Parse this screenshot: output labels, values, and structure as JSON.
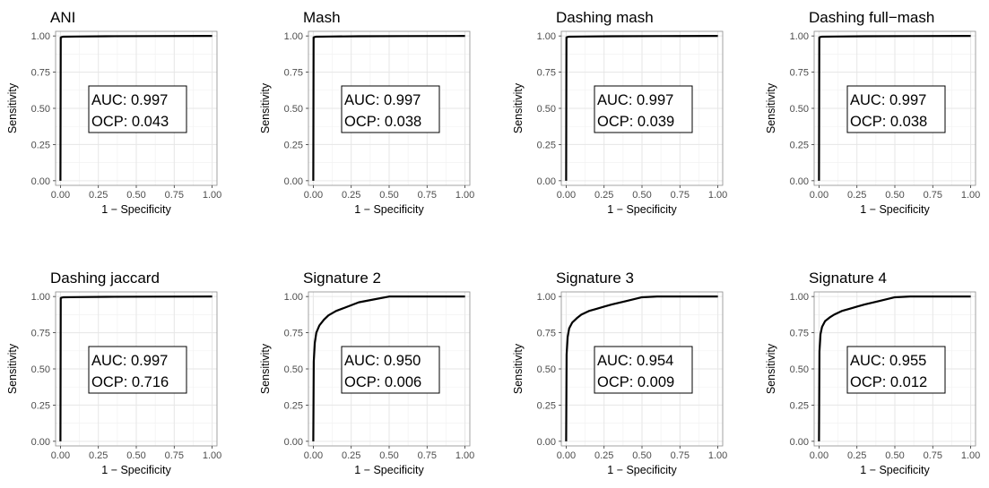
{
  "axes": {
    "xlabel": "1 − Specificity",
    "ylabel": "Sensitivity",
    "ticks": [
      "0.00",
      "0.25",
      "0.50",
      "0.75",
      "1.00"
    ]
  },
  "colors": {
    "curve": "#000000",
    "grid": "#e6e6e6",
    "panel": "#ffffff",
    "frame": "#8c8c8c",
    "tick_text": "#4d4d4d"
  },
  "chart_data": [
    {
      "type": "line",
      "title": "ANI",
      "auc_label": "AUC: 0.997",
      "ocp_label": "OCP: 0.043",
      "xlabel": "1 − Specificity",
      "ylabel": "Sensitivity",
      "xlim": [
        0,
        1
      ],
      "ylim": [
        0,
        1
      ],
      "grid": true,
      "series": [
        {
          "x": [
            0,
            0.002,
            0.01,
            0.02,
            0.1,
            0.3,
            0.6,
            1.0
          ],
          "y": [
            0,
            0.99,
            0.993,
            0.995,
            0.996,
            0.998,
            0.999,
            1.0
          ]
        }
      ]
    },
    {
      "type": "line",
      "title": "Mash",
      "auc_label": "AUC: 0.997",
      "ocp_label": "OCP: 0.038",
      "xlabel": "1 − Specificity",
      "ylabel": "Sensitivity",
      "xlim": [
        0,
        1
      ],
      "ylim": [
        0,
        1
      ],
      "grid": true,
      "series": [
        {
          "x": [
            0,
            0.002,
            0.01,
            0.02,
            0.1,
            0.3,
            0.6,
            1.0
          ],
          "y": [
            0,
            0.99,
            0.993,
            0.995,
            0.996,
            0.998,
            0.999,
            1.0
          ]
        }
      ]
    },
    {
      "type": "line",
      "title": "Dashing mash",
      "auc_label": "AUC: 0.997",
      "ocp_label": "OCP: 0.039",
      "xlabel": "1 − Specificity",
      "ylabel": "Sensitivity",
      "xlim": [
        0,
        1
      ],
      "ylim": [
        0,
        1
      ],
      "grid": true,
      "series": [
        {
          "x": [
            0,
            0.002,
            0.01,
            0.02,
            0.1,
            0.3,
            0.6,
            1.0
          ],
          "y": [
            0,
            0.99,
            0.993,
            0.995,
            0.996,
            0.998,
            0.999,
            1.0
          ]
        }
      ]
    },
    {
      "type": "line",
      "title": "Dashing full−mash",
      "auc_label": "AUC: 0.997",
      "ocp_label": "OCP: 0.038",
      "xlabel": "1 − Specificity",
      "ylabel": "Sensitivity",
      "xlim": [
        0,
        1
      ],
      "ylim": [
        0,
        1
      ],
      "grid": true,
      "series": [
        {
          "x": [
            0,
            0.002,
            0.01,
            0.02,
            0.1,
            0.3,
            0.6,
            1.0
          ],
          "y": [
            0,
            0.99,
            0.993,
            0.995,
            0.996,
            0.998,
            0.999,
            1.0
          ]
        }
      ]
    },
    {
      "type": "line",
      "title": "Dashing jaccard",
      "auc_label": "AUC: 0.997",
      "ocp_label": "OCP: 0.716",
      "xlabel": "1 − Specificity",
      "ylabel": "Sensitivity",
      "xlim": [
        0,
        1
      ],
      "ylim": [
        0,
        1
      ],
      "grid": true,
      "series": [
        {
          "x": [
            0,
            0.002,
            0.01,
            0.02,
            0.1,
            0.3,
            0.6,
            1.0
          ],
          "y": [
            0,
            0.99,
            0.993,
            0.995,
            0.996,
            0.998,
            0.999,
            1.0
          ]
        }
      ]
    },
    {
      "type": "line",
      "title": "Signature 2",
      "auc_label": "AUC: 0.950",
      "ocp_label": "OCP: 0.006",
      "xlabel": "1 − Specificity",
      "ylabel": "Sensitivity",
      "xlim": [
        0,
        1
      ],
      "ylim": [
        0,
        1
      ],
      "grid": true,
      "series": [
        {
          "x": [
            0,
            0.003,
            0.01,
            0.02,
            0.04,
            0.07,
            0.1,
            0.15,
            0.2,
            0.25,
            0.3,
            0.4,
            0.5,
            0.6,
            0.8,
            1.0
          ],
          "y": [
            0,
            0.55,
            0.68,
            0.75,
            0.8,
            0.84,
            0.87,
            0.9,
            0.92,
            0.94,
            0.96,
            0.98,
            1.0,
            1.0,
            1.0,
            1.0
          ]
        }
      ]
    },
    {
      "type": "line",
      "title": "Signature 3",
      "auc_label": "AUC: 0.954",
      "ocp_label": "OCP: 0.009",
      "xlabel": "1 − Specificity",
      "ylabel": "Sensitivity",
      "xlim": [
        0,
        1
      ],
      "ylim": [
        0,
        1
      ],
      "grid": true,
      "series": [
        {
          "x": [
            0,
            0.003,
            0.01,
            0.02,
            0.04,
            0.07,
            0.1,
            0.15,
            0.2,
            0.25,
            0.3,
            0.4,
            0.5,
            0.6,
            0.8,
            1.0
          ],
          "y": [
            0,
            0.6,
            0.72,
            0.78,
            0.82,
            0.85,
            0.875,
            0.9,
            0.915,
            0.93,
            0.945,
            0.97,
            0.995,
            1.0,
            1.0,
            1.0
          ]
        }
      ]
    },
    {
      "type": "line",
      "title": "Signature 4",
      "auc_label": "AUC: 0.955",
      "ocp_label": "OCP: 0.012",
      "xlabel": "1 − Specificity",
      "ylabel": "Sensitivity",
      "xlim": [
        0,
        1
      ],
      "ylim": [
        0,
        1
      ],
      "grid": true,
      "series": [
        {
          "x": [
            0,
            0.003,
            0.01,
            0.02,
            0.04,
            0.07,
            0.1,
            0.15,
            0.2,
            0.25,
            0.3,
            0.4,
            0.5,
            0.6,
            0.8,
            1.0
          ],
          "y": [
            0,
            0.62,
            0.74,
            0.79,
            0.83,
            0.855,
            0.875,
            0.9,
            0.915,
            0.93,
            0.945,
            0.97,
            0.995,
            1.0,
            1.0,
            1.0
          ]
        }
      ]
    }
  ]
}
